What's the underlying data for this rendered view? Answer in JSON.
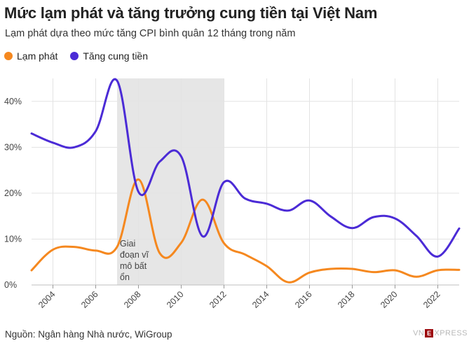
{
  "title": "Mức lạm phát và tăng trưởng cung tiền tại Việt Nam",
  "subtitle": "Lạm phát dựa theo mức tăng CPI bình quân 12 tháng trong năm",
  "source": "Nguồn: Ngân hàng Nhà nước, WiGroup",
  "brand": {
    "left": "VN",
    "mark": "E",
    "right": "XPRESS"
  },
  "colors": {
    "inflation": "#F5881F",
    "money": "#4B2BD6",
    "band": "#E6E6E6",
    "grid": "#E3E3E3"
  },
  "chart_data": {
    "type": "line",
    "xlim": [
      2003,
      2023
    ],
    "ylim": [
      0,
      45
    ],
    "yticks": [
      0,
      10,
      20,
      30,
      40
    ],
    "ytick_labels": [
      "0%",
      "10%",
      "20%",
      "30%",
      "40%"
    ],
    "xticks": [
      2004,
      2006,
      2008,
      2010,
      2012,
      2014,
      2016,
      2018,
      2020,
      2022
    ],
    "xtick_labels": [
      "2004",
      "2006",
      "2008",
      "2010",
      "2012",
      "2014",
      "2016",
      "2018",
      "2020",
      "2022"
    ],
    "grid": true,
    "legend": "top-left",
    "shaded_region": {
      "x": [
        2007,
        2012
      ],
      "label": "Giai đoạn vĩ mô bất ổn"
    },
    "series": [
      {
        "name": "Lạm phát",
        "color": "#F5881F",
        "x": [
          2003,
          2004,
          2005,
          2006,
          2007,
          2008,
          2009,
          2010,
          2011,
          2012,
          2013,
          2014,
          2015,
          2016,
          2017,
          2018,
          2019,
          2020,
          2021,
          2022,
          2023
        ],
        "y": [
          3.2,
          7.7,
          8.3,
          7.5,
          8.3,
          23.0,
          6.9,
          9.2,
          18.6,
          9.1,
          6.6,
          4.1,
          0.6,
          2.7,
          3.5,
          3.5,
          2.8,
          3.2,
          1.8,
          3.2,
          3.3
        ]
      },
      {
        "name": "Tăng cung tiền",
        "color": "#4B2BD6",
        "x": [
          2003,
          2004,
          2005,
          2006,
          2007,
          2008,
          2009,
          2010,
          2011,
          2012,
          2013,
          2014,
          2015,
          2016,
          2017,
          2018,
          2019,
          2020,
          2021,
          2022,
          2023
        ],
        "y": [
          33.0,
          31.0,
          30.0,
          33.5,
          44.5,
          20.3,
          26.9,
          28.0,
          10.6,
          22.4,
          18.8,
          17.7,
          16.2,
          18.4,
          14.9,
          12.4,
          14.8,
          14.5,
          10.7,
          6.2,
          12.3
        ]
      }
    ]
  }
}
